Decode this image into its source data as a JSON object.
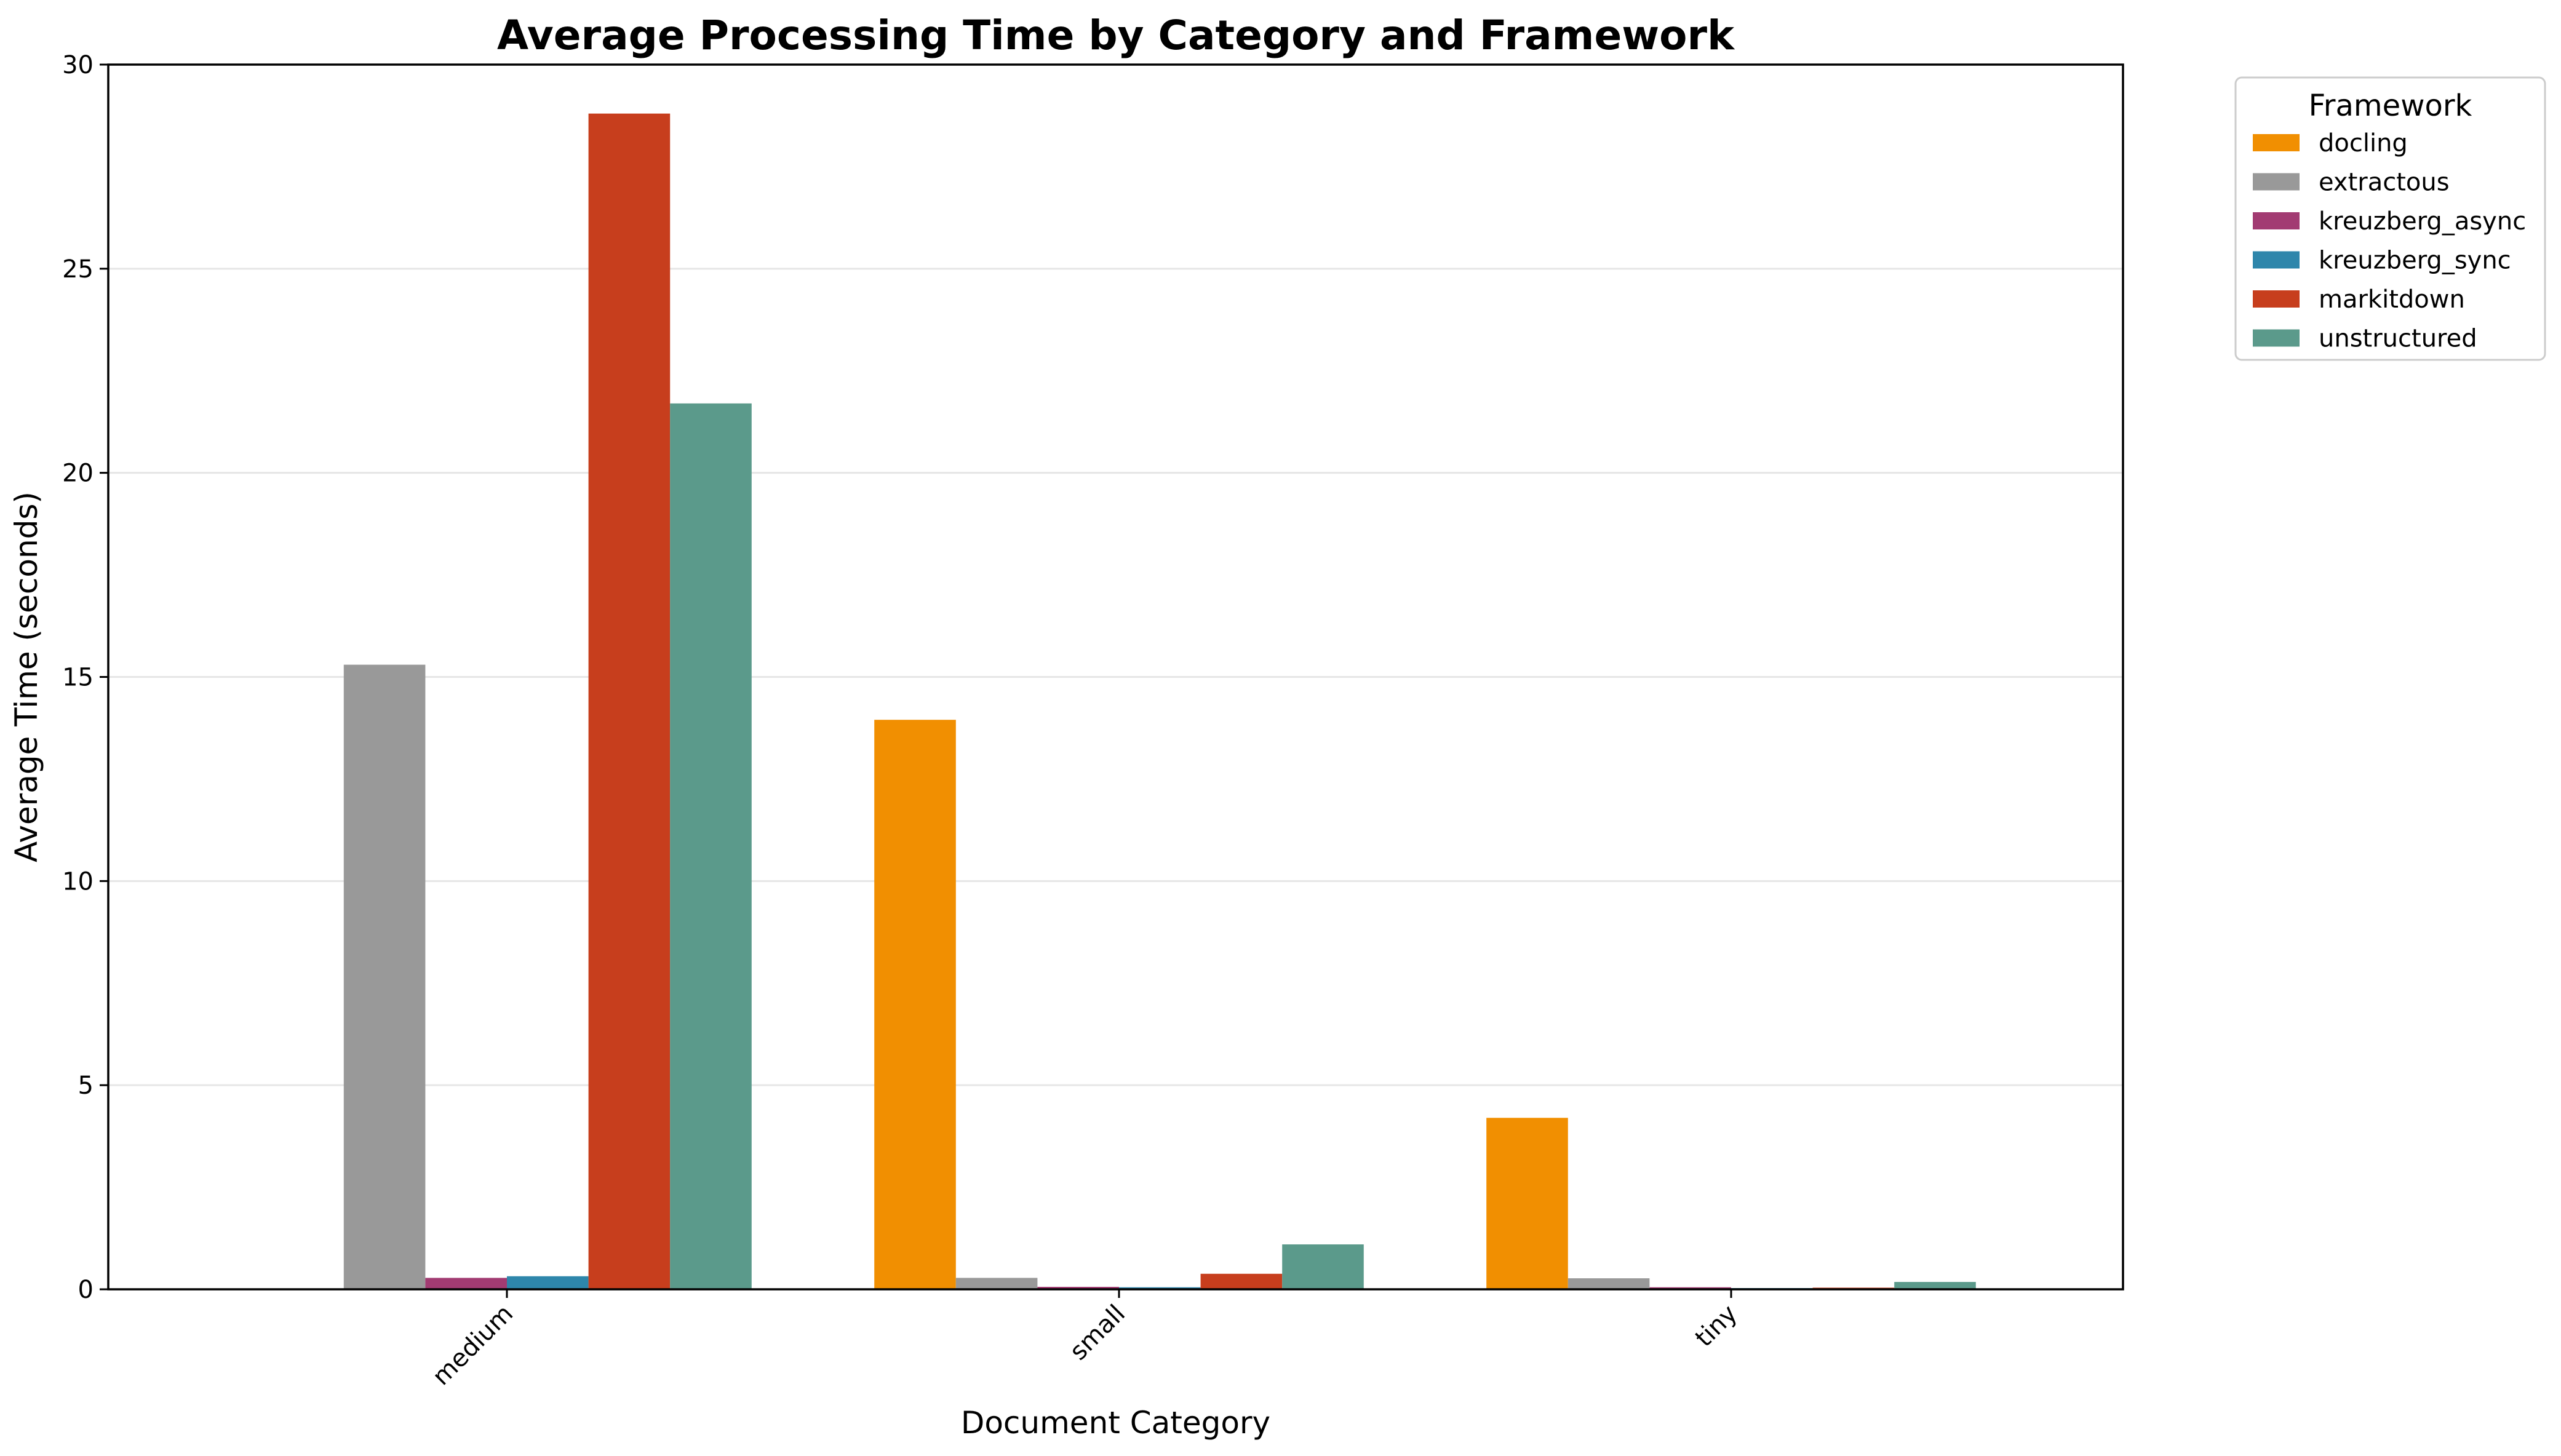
{
  "chart_data": {
    "type": "bar",
    "title": "Average Processing Time by Category and Framework",
    "xlabel": "Document Category",
    "ylabel": "Average Time (seconds)",
    "categories": [
      "medium",
      "small",
      "tiny"
    ],
    "ylim": [
      0,
      30
    ],
    "yticks": [
      0,
      5,
      10,
      15,
      20,
      25,
      30
    ],
    "grid": "y",
    "legend": {
      "title": "Framework",
      "placement": "outside-top-right"
    },
    "series": [
      {
        "name": "docling",
        "color": "#F18F01",
        "values": [
          0,
          13.95,
          4.2
        ]
      },
      {
        "name": "extractous",
        "color": "#999999",
        "values": [
          15.3,
          0.28,
          0.27
        ]
      },
      {
        "name": "kreuzberg_async",
        "color": "#A23B72",
        "values": [
          0.28,
          0.06,
          0.05
        ]
      },
      {
        "name": "kreuzberg_sync",
        "color": "#2E86AB",
        "values": [
          0.32,
          0.05,
          0.03
        ]
      },
      {
        "name": "markitdown",
        "color": "#C73E1D",
        "values": [
          28.8,
          0.38,
          0.04
        ]
      },
      {
        "name": "unstructured",
        "color": "#5B9A8B",
        "values": [
          21.7,
          1.1,
          0.18
        ]
      }
    ]
  }
}
